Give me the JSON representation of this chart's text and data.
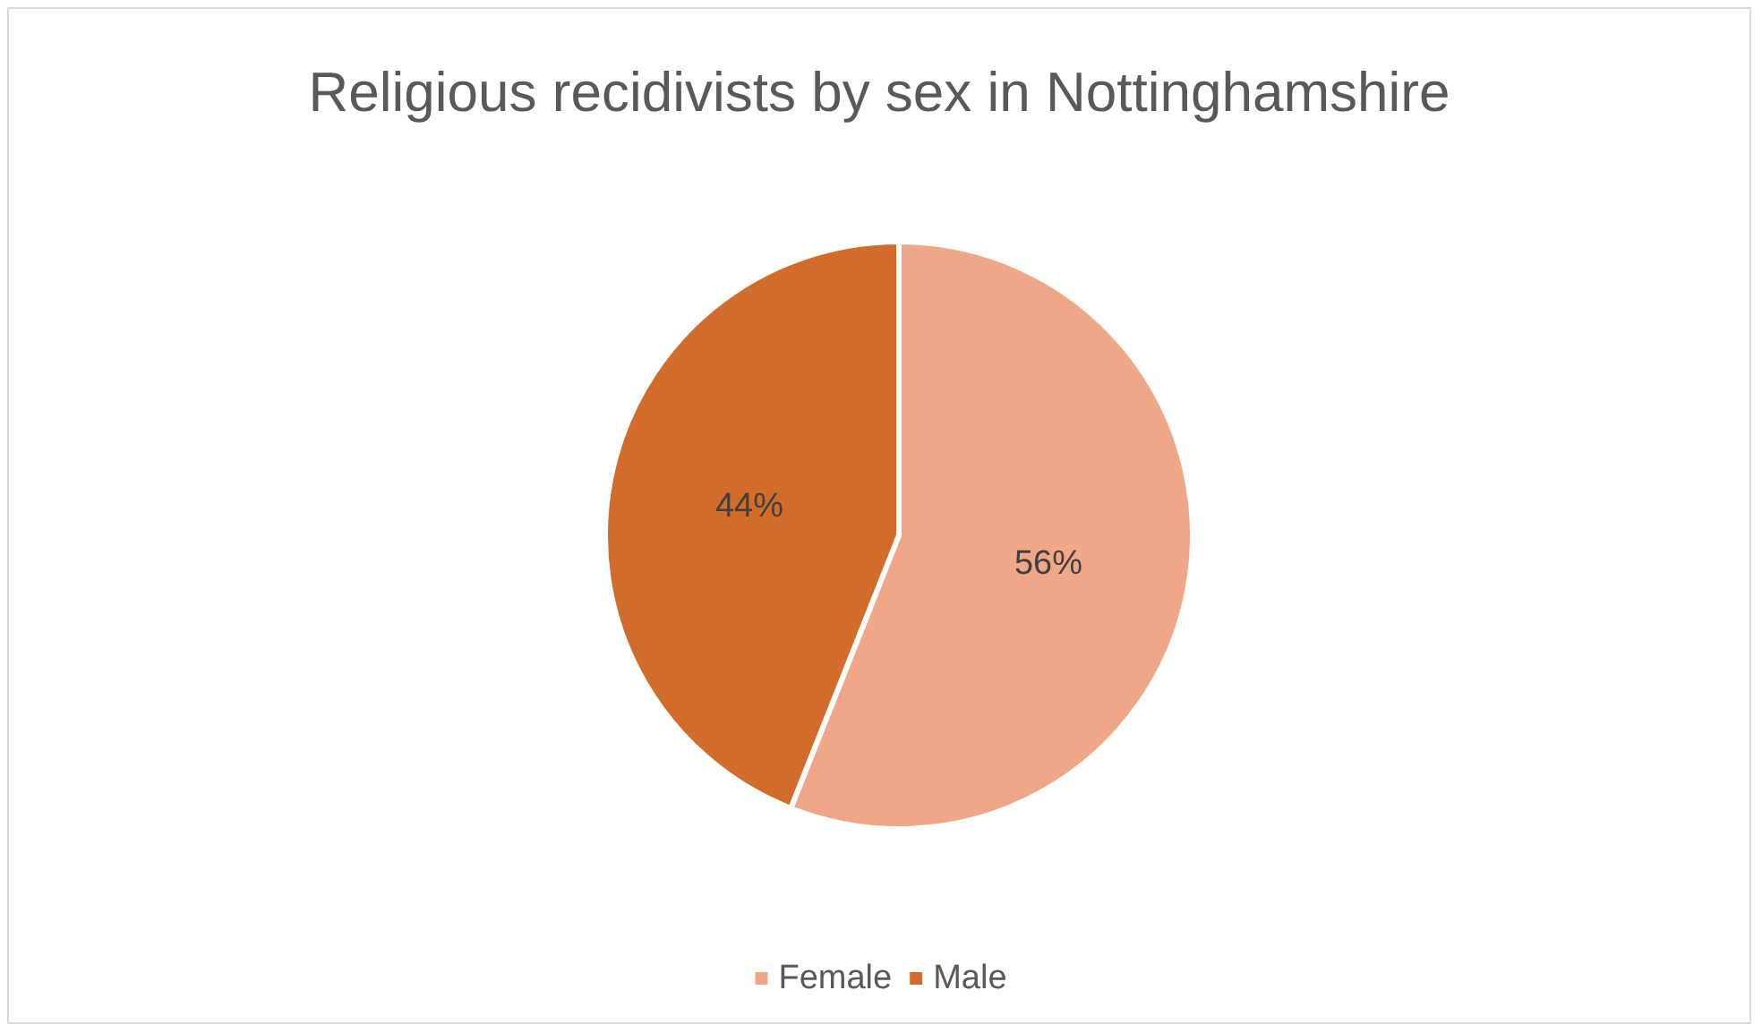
{
  "chart_data": {
    "type": "pie",
    "title": "Religious recidivists by sex in Nottinghamshire",
    "categories": [
      "Female",
      "Male"
    ],
    "values": [
      56,
      44
    ],
    "value_labels": [
      "56%",
      "44%"
    ],
    "colors": [
      "#f0a787",
      "#d26c2a"
    ],
    "legend": "bottom"
  }
}
